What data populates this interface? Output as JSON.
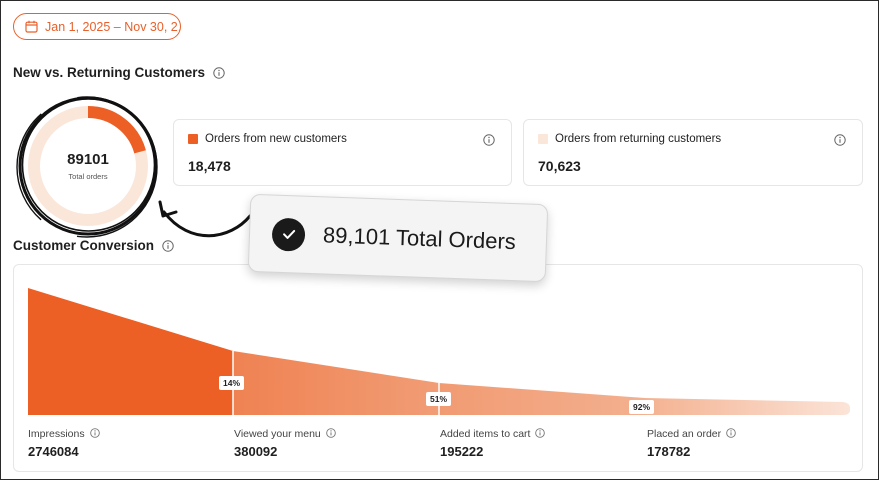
{
  "date_range": {
    "label": "Jan 1, 2025 – Nov 30, 2..."
  },
  "customers": {
    "title": "New vs. Returning Customers",
    "total_value": "89101",
    "total_label": "Total orders",
    "new_share": 0.2074,
    "new_card": {
      "label": "Orders from new customers",
      "value": "18,478"
    },
    "returning_card": {
      "label": "Orders from returning customers",
      "value": "70,623"
    }
  },
  "callout": {
    "text": "89,101 Total Orders"
  },
  "conversion": {
    "title": "Customer Conversion",
    "stages": [
      {
        "label": "Impressions",
        "value": "2746084"
      },
      {
        "label": "Viewed your menu",
        "value": "380092"
      },
      {
        "label": "Added items to cart",
        "value": "195222"
      },
      {
        "label": "Placed an order",
        "value": "178782"
      }
    ],
    "rates": [
      "14%",
      "51%",
      "92%"
    ]
  },
  "colors": {
    "accent": "#e8612c",
    "funnel_dark": "#ec5f25",
    "funnel_mid": "#ef8a5d",
    "funnel_light": "#f7c9b1",
    "returning": "#fbe6da"
  }
}
